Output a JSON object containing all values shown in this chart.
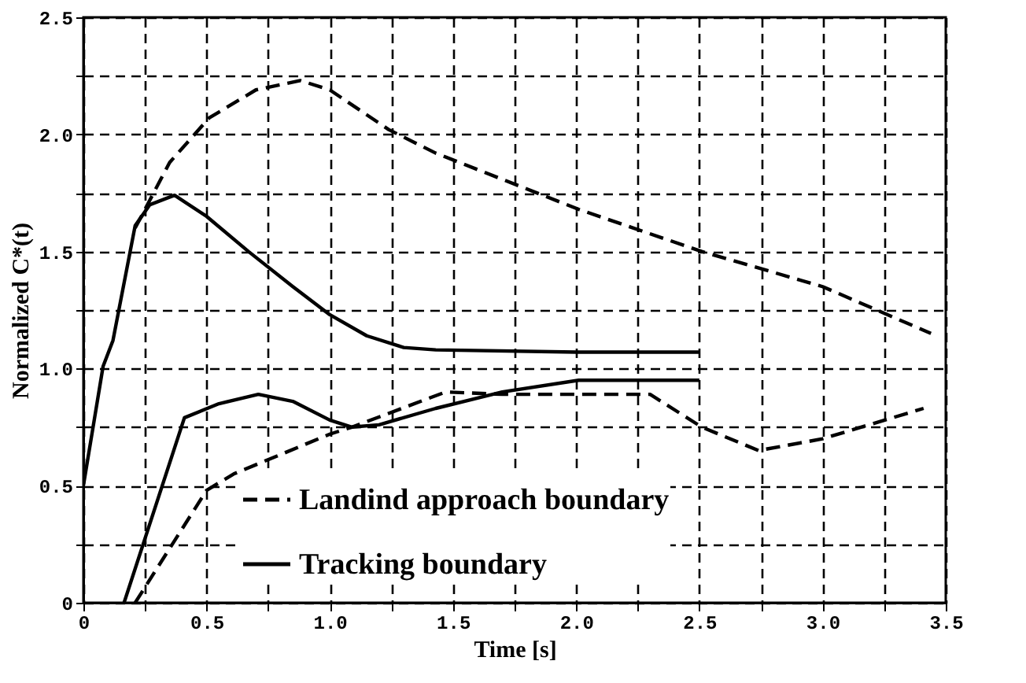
{
  "chart_data": {
    "type": "line",
    "xlabel": "Time [s]",
    "ylabel": "Normalized C*(t)",
    "xlim": [
      0,
      3.5
    ],
    "ylim": [
      0,
      2.5
    ],
    "xticks": [
      0,
      {
        "value": 0.25,
        "label": null
      },
      0.5,
      {
        "value": 0.75,
        "label": null
      },
      {
        "value": 1,
        "label": "1.0"
      },
      {
        "value": 1.25,
        "label": null
      },
      1.5,
      {
        "value": 1.75,
        "label": null
      },
      {
        "value": 2,
        "label": "2.0"
      },
      {
        "value": 2.25,
        "label": null
      },
      2.5,
      {
        "value": 2.75,
        "label": null
      },
      {
        "value": 3,
        "label": "3.0"
      },
      {
        "value": 3.25,
        "label": null
      },
      3.5
    ],
    "yticks": [
      0,
      {
        "value": 0.25,
        "label": null
      },
      0.5,
      {
        "value": 0.75,
        "label": null
      },
      {
        "value": 1,
        "label": "1.0"
      },
      {
        "value": 1.25,
        "label": null
      },
      1.5,
      {
        "value": 1.75,
        "label": null
      },
      {
        "value": 2,
        "label": "2.0"
      },
      {
        "value": 2.25,
        "label": null
      },
      2.5
    ],
    "grid": true,
    "legend": "bottom",
    "marker": "none",
    "series": [
      {
        "name": "Landind approach boundary",
        "color": "#000000",
        "line_style": "dashed",
        "x": [
          0.21,
          0.35,
          0.51,
          0.7,
          0.88,
          1.0,
          1.24,
          1.43,
          2.01,
          2.51,
          3.0,
          3.44,
          null,
          0.21,
          0.5,
          0.61,
          1.0,
          1.09,
          1.47,
          1.7,
          2.3,
          2.51,
          2.74,
          3.0,
          3.41
        ],
        "values": [
          1.6,
          1.88,
          2.07,
          2.19,
          2.23,
          2.19,
          2.02,
          1.92,
          1.68,
          1.5,
          1.35,
          1.15,
          null,
          0,
          0.48,
          0.55,
          0.72,
          0.75,
          0.9,
          0.89,
          0.89,
          0.75,
          0.65,
          0.7,
          0.83
        ]
      },
      {
        "name": "Tracking boundary",
        "color": "#000000",
        "line_style": "solid",
        "x": [
          0,
          0.08,
          0.12,
          0.21,
          0.27,
          0.37,
          0.5,
          0.67,
          0.85,
          1.0,
          1.15,
          1.3,
          1.43,
          2.0,
          2.5,
          null,
          0.165,
          0.41,
          0.55,
          0.71,
          0.85,
          1.0,
          1.09,
          1.2,
          1.43,
          1.7,
          2.01,
          2.5
        ],
        "values": [
          0.5,
          1.01,
          1.12,
          1.61,
          1.7,
          1.74,
          1.65,
          1.5,
          1.35,
          1.23,
          1.14,
          1.09,
          1.08,
          1.07,
          1.07,
          null,
          0,
          0.79,
          0.85,
          0.89,
          0.86,
          0.78,
          0.75,
          0.76,
          0.83,
          0.9,
          0.95,
          0.95
        ]
      }
    ]
  }
}
